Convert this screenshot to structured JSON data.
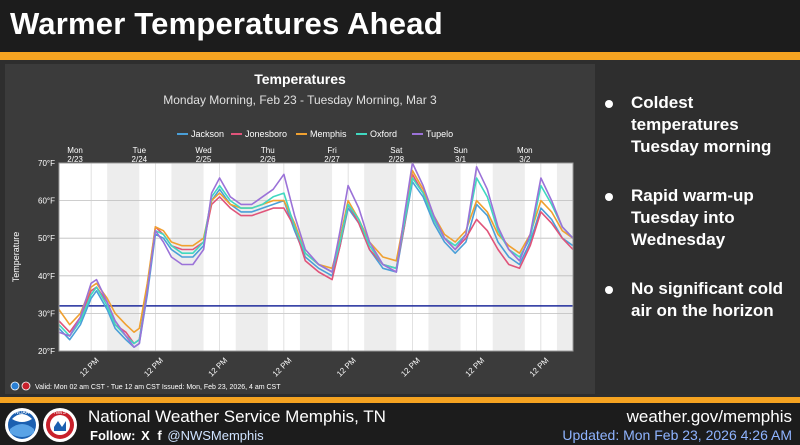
{
  "headline": "Warmer Temperatures Ahead",
  "bullets": [
    "Coldest temperatures Tuesday morning",
    "Rapid warm-up Tuesday into Wednesday",
    "No significant cold air on the horizon"
  ],
  "footer": {
    "office": "National Weather Service Memphis, TN",
    "follow_label": "Follow:",
    "social_x": "X",
    "social_fb": "f",
    "handle": "@NWSMemphis",
    "website": "weather.gov/memphis",
    "updated": "Updated: Mon Feb 23, 2026 4:26 AM"
  },
  "logos": {
    "noaa": "NOAA",
    "nws": "NWS"
  },
  "colors": {
    "accent": "#f5a321",
    "background": "#2b2b2b",
    "panel": "#3b3b3b",
    "plot": "#ffffff",
    "night_band": "#ededed",
    "freezing_line": "#1f2b9b",
    "updated_text": "#8fb4ff"
  },
  "chart_data": {
    "type": "line",
    "title": "Temperatures",
    "subtitle": "Monday Morning, Feb 23 - Tuesday Morning, Mar 3",
    "ylabel": "Temperature",
    "ylim": [
      20,
      70
    ],
    "yticks": [
      "20°F",
      "30°F",
      "40°F",
      "50°F",
      "60°F",
      "70°F"
    ],
    "freezing_line": 32,
    "x_range": [
      0,
      192
    ],
    "day_labels": [
      {
        "day": "Mon",
        "date": "2/23",
        "at": 6
      },
      {
        "day": "Tue",
        "date": "2/24",
        "at": 30
      },
      {
        "day": "Wed",
        "date": "2/25",
        "at": 54
      },
      {
        "day": "Thu",
        "date": "2/26",
        "at": 78
      },
      {
        "day": "Fri",
        "date": "2/27",
        "at": 102
      },
      {
        "day": "Sat",
        "date": "2/28",
        "at": 126
      },
      {
        "day": "Sun",
        "date": "3/1",
        "at": 150
      },
      {
        "day": "Mon",
        "date": "3/2",
        "at": 174
      }
    ],
    "xtick_label": "12 PM",
    "xticks_at": [
      12,
      36,
      60,
      84,
      108,
      132,
      156,
      180
    ],
    "night_bands": [
      [
        18,
        30
      ],
      [
        42,
        54
      ],
      [
        66,
        78
      ],
      [
        90,
        102
      ],
      [
        114,
        126
      ],
      [
        138,
        150
      ],
      [
        162,
        174
      ],
      [
        186,
        192
      ]
    ],
    "footnote": "Valid: Mon 02 am CST - Tue 12 am CST    Issued: Mon, Feb 23, 2026, 4 am CST",
    "series": [
      {
        "name": "Jackson",
        "color": "#4a9fd8",
        "x": [
          0,
          4,
          8,
          12,
          14,
          18,
          21,
          25,
          28,
          30,
          33,
          36,
          39,
          42,
          46,
          50,
          54,
          57,
          60,
          64,
          68,
          72,
          76,
          80,
          84,
          88,
          92,
          97,
          102,
          105,
          108,
          112,
          116,
          121,
          126,
          129,
          132,
          136,
          140,
          144,
          148,
          152,
          156,
          160,
          164,
          168,
          172,
          176,
          180,
          184,
          188,
          192
        ],
        "values": [
          26,
          23,
          27,
          34,
          36,
          31,
          26,
          23,
          21,
          22,
          35,
          51,
          50,
          47,
          45,
          45,
          48,
          60,
          63,
          59,
          57,
          57,
          58,
          59,
          60,
          52,
          45,
          42,
          40,
          48,
          58,
          54,
          47,
          42,
          41,
          53,
          65,
          61,
          54,
          49,
          46,
          49,
          59,
          56,
          49,
          45,
          43,
          49,
          58,
          55,
          50,
          48
        ]
      },
      {
        "name": "Jonesboro",
        "color": "#e0547a",
        "x": [
          0,
          4,
          8,
          12,
          14,
          18,
          21,
          25,
          28,
          30,
          33,
          36,
          39,
          42,
          46,
          50,
          54,
          57,
          60,
          64,
          68,
          72,
          76,
          80,
          84,
          88,
          92,
          97,
          102,
          105,
          108,
          112,
          116,
          121,
          126,
          129,
          132,
          136,
          140,
          144,
          148,
          152,
          156,
          160,
          164,
          168,
          172,
          176,
          180,
          184,
          188,
          192
        ],
        "values": [
          28,
          25,
          29,
          36,
          37,
          33,
          27,
          25,
          22,
          23,
          37,
          53,
          51,
          48,
          47,
          47,
          49,
          59,
          61,
          58,
          56,
          56,
          57,
          58,
          58,
          53,
          44,
          41,
          39,
          48,
          59,
          54,
          47,
          43,
          42,
          53,
          67,
          62,
          55,
          50,
          47,
          50,
          55,
          52,
          47,
          43,
          42,
          48,
          57,
          54,
          50,
          47
        ]
      },
      {
        "name": "Memphis",
        "color": "#f0a030",
        "x": [
          0,
          4,
          8,
          12,
          14,
          18,
          21,
          25,
          28,
          30,
          33,
          36,
          39,
          42,
          46,
          50,
          54,
          57,
          60,
          64,
          68,
          72,
          76,
          80,
          84,
          88,
          92,
          97,
          102,
          105,
          108,
          112,
          116,
          121,
          126,
          129,
          132,
          136,
          140,
          144,
          148,
          152,
          156,
          160,
          164,
          168,
          172,
          176,
          180,
          184,
          188,
          192
        ],
        "values": [
          31,
          27,
          30,
          37,
          38,
          34,
          30,
          27,
          25,
          26,
          38,
          53,
          52,
          49,
          48,
          48,
          50,
          60,
          62,
          59,
          58,
          58,
          59,
          60,
          60,
          54,
          46,
          43,
          42,
          50,
          60,
          55,
          49,
          45,
          44,
          55,
          68,
          63,
          56,
          51,
          49,
          52,
          60,
          57,
          51,
          48,
          46,
          51,
          60,
          57,
          52,
          50
        ]
      },
      {
        "name": "Oxford",
        "color": "#40d8c0",
        "x": [
          0,
          4,
          8,
          12,
          14,
          18,
          21,
          25,
          28,
          30,
          33,
          36,
          39,
          42,
          46,
          50,
          54,
          57,
          60,
          64,
          68,
          72,
          76,
          80,
          84,
          88,
          92,
          97,
          102,
          105,
          108,
          112,
          116,
          121,
          126,
          129,
          132,
          136,
          140,
          144,
          148,
          152,
          156,
          160,
          164,
          168,
          172,
          176,
          180,
          184,
          188,
          192
        ],
        "values": [
          27,
          24,
          28,
          35,
          37,
          32,
          27,
          24,
          22,
          23,
          36,
          52,
          51,
          48,
          46,
          46,
          49,
          61,
          64,
          60,
          58,
          58,
          59,
          61,
          62,
          53,
          46,
          43,
          41,
          49,
          59,
          55,
          48,
          43,
          42,
          54,
          66,
          62,
          55,
          50,
          48,
          51,
          66,
          61,
          52,
          47,
          45,
          50,
          64,
          59,
          53,
          50
        ]
      },
      {
        "name": "Tupelo",
        "color": "#9b72d8",
        "x": [
          0,
          4,
          8,
          12,
          14,
          18,
          21,
          25,
          28,
          30,
          33,
          36,
          39,
          42,
          46,
          50,
          54,
          57,
          60,
          64,
          68,
          72,
          76,
          80,
          84,
          88,
          92,
          97,
          102,
          105,
          108,
          112,
          116,
          121,
          126,
          129,
          132,
          136,
          140,
          144,
          148,
          152,
          156,
          160,
          164,
          168,
          172,
          176,
          180,
          184,
          188,
          192
        ],
        "values": [
          25,
          24,
          29,
          38,
          39,
          33,
          28,
          24,
          21,
          22,
          36,
          52,
          49,
          45,
          43,
          43,
          47,
          62,
          66,
          61,
          59,
          59,
          61,
          63,
          67,
          56,
          47,
          43,
          41,
          52,
          64,
          58,
          49,
          43,
          41,
          56,
          70,
          64,
          56,
          50,
          47,
          51,
          69,
          63,
          53,
          47,
          44,
          51,
          66,
          60,
          53,
          50
        ]
      }
    ]
  }
}
